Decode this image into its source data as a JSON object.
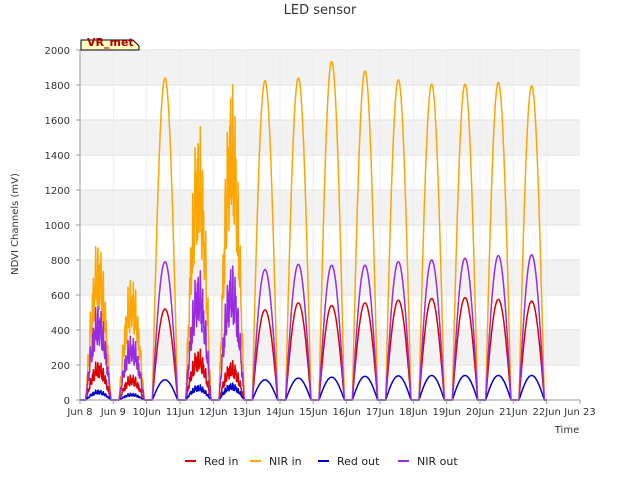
{
  "chart_data": {
    "type": "line",
    "title": "LED sensor",
    "xlabel": "Time",
    "ylabel": "NDVI Channels (mV)",
    "badge": "VR_met",
    "ylim": [
      0,
      2000
    ],
    "yticks": [
      0,
      200,
      400,
      600,
      800,
      1000,
      1200,
      1400,
      1600,
      1800,
      2000
    ],
    "xlim": [
      8,
      23
    ],
    "xticks": [
      {
        "value": 8,
        "label": "Jun 8"
      },
      {
        "value": 9,
        "label": "Jun 9"
      },
      {
        "value": 10,
        "label": "10Jun"
      },
      {
        "value": 11,
        "label": "11Jun"
      },
      {
        "value": 12,
        "label": "12Jun"
      },
      {
        "value": 13,
        "label": "13Jun"
      },
      {
        "value": 14,
        "label": "14Jun"
      },
      {
        "value": 15,
        "label": "15Jun"
      },
      {
        "value": 16,
        "label": "16Jun"
      },
      {
        "value": 17,
        "label": "17Jun"
      },
      {
        "value": 18,
        "label": "18Jun"
      },
      {
        "value": 19,
        "label": "19Jun"
      },
      {
        "value": 20,
        "label": "20Jun"
      },
      {
        "value": 21,
        "label": "21Jun"
      },
      {
        "value": 22,
        "label": "22Jun"
      },
      {
        "value": 23,
        "label": "Jun 23"
      }
    ],
    "grid": true,
    "legend": "bottom-center",
    "x_days": [
      8.55,
      9.55,
      10.55,
      11.55,
      12.55,
      13.55,
      14.55,
      15.55,
      16.55,
      17.55,
      18.55,
      19.55,
      20.55,
      21.55
    ],
    "series": [
      {
        "name": "Red in",
        "color": "#dd0000",
        "peaks": [
          230,
          150,
          520,
          300,
          230,
          515,
          555,
          540,
          555,
          570,
          580,
          585,
          575,
          565
        ]
      },
      {
        "name": "NIR in",
        "color": "#ffa500",
        "peaks": [
          930,
          720,
          1840,
          1620,
          1860,
          1825,
          1840,
          1935,
          1880,
          1830,
          1805,
          1805,
          1815,
          1795
        ]
      },
      {
        "name": "Red out",
        "color": "#0000cc",
        "peaks": [
          60,
          40,
          115,
          90,
          100,
          115,
          125,
          130,
          135,
          138,
          140,
          140,
          140,
          140
        ]
      },
      {
        "name": "NIR out",
        "color": "#9a2be2",
        "peaks": [
          560,
          380,
          790,
          770,
          800,
          745,
          775,
          770,
          770,
          790,
          800,
          810,
          825,
          830
        ]
      }
    ]
  }
}
